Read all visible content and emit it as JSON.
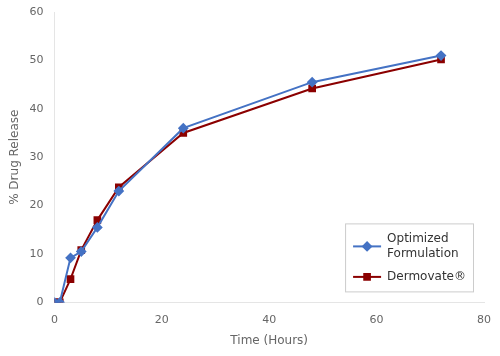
{
  "chart_data": {
    "type": "line",
    "xlabel": "Time (Hours)",
    "ylabel": "% Drug Release",
    "x": [
      0,
      1,
      3,
      5,
      8,
      12,
      24,
      48,
      72
    ],
    "series": [
      {
        "name": "Optimized\nFormulation",
        "color": "#4472C4",
        "marker": "diamond",
        "values": [
          0,
          0,
          9.2,
          10.5,
          15.5,
          23.0,
          36.0,
          45.5,
          51.0
        ]
      },
      {
        "name": "Dermovate®",
        "color": "#8B0000",
        "marker": "square",
        "values": [
          0,
          0,
          4.8,
          10.8,
          17.0,
          23.8,
          35.0,
          44.2,
          50.2
        ]
      }
    ],
    "xlim": [
      0,
      80
    ],
    "ylim": [
      0,
      60
    ],
    "xticks": [
      0,
      20,
      40,
      60,
      80
    ],
    "yticks": [
      0,
      10,
      20,
      30,
      40,
      50,
      60
    ],
    "legend": "lower right",
    "grid": false
  }
}
